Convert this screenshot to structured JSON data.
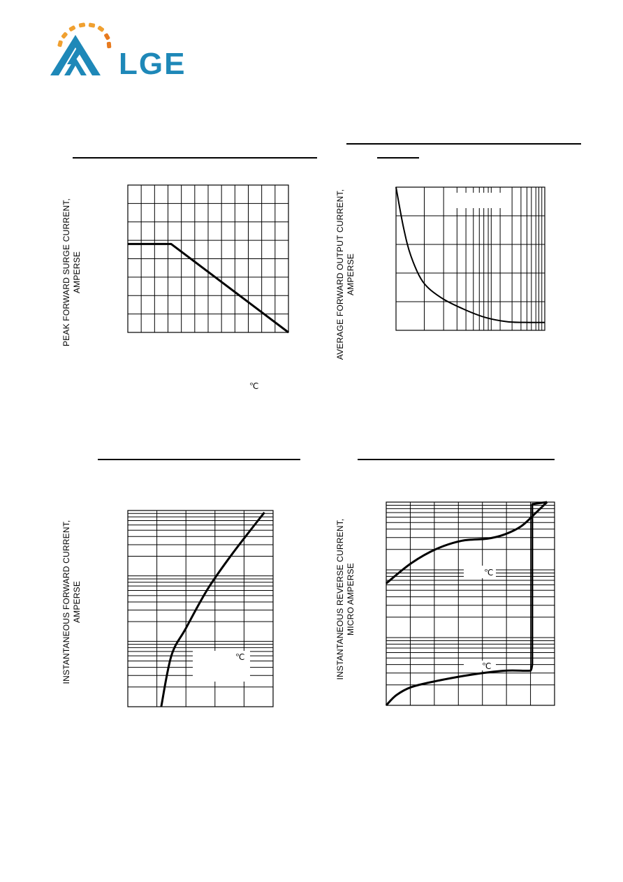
{
  "brand": {
    "logo_text": "LGE",
    "colors": {
      "blue": "#1e88b8",
      "orange": "#f0a030",
      "orange_dark": "#e87a1e"
    }
  },
  "charts": {
    "tl": {
      "ylabel_line1": "PEAK FORWARD SURGE CURRENT,",
      "ylabel_line2": "AMPERSE",
      "unit_mark": "℃"
    },
    "tr": {
      "ylabel_line1": "AVERAGE FORWARD OUTPUT CURRENT,",
      "ylabel_line2": "AMPERSE"
    },
    "bl": {
      "ylabel_line1": "INSTANTANEOUS FORWARD CURRENT,",
      "ylabel_line2": "AMPERSE",
      "unit_mark": "℃"
    },
    "br": {
      "ylabel_line1": "INSTANTANEOUS REVERSE CURRENT,",
      "ylabel_line2": "MICRO AMPERSE",
      "unit_mark_upper": "℃",
      "unit_mark_lower": "℃"
    }
  },
  "chart_data": [
    {
      "type": "line",
      "series": [
        {
          "x": [
            0,
            0.27,
            1.0
          ],
          "y": [
            0.6,
            0.6,
            0.0
          ]
        }
      ],
      "xlim": [
        0,
        1
      ],
      "ylim": [
        0,
        1
      ],
      "grid": true
    },
    {
      "type": "line",
      "xscale": "log",
      "series": [
        {
          "x": [
            0.0,
            0.05,
            0.1,
            0.18,
            0.3,
            0.45,
            0.6,
            0.75,
            0.9,
            1.0
          ],
          "y": [
            1.0,
            0.72,
            0.52,
            0.34,
            0.23,
            0.15,
            0.09,
            0.06,
            0.055,
            0.055
          ]
        }
      ],
      "xlim": [
        0,
        1
      ],
      "ylim": [
        0,
        1
      ],
      "grid": true
    },
    {
      "type": "line",
      "yscale": "log",
      "series": [
        {
          "x": [
            0.23,
            0.3,
            0.4,
            0.55,
            0.72,
            0.94
          ],
          "y": [
            0.0,
            0.26,
            0.4,
            0.6,
            0.78,
            0.99
          ]
        }
      ],
      "xlim": [
        0,
        1
      ],
      "ylim": [
        0,
        1
      ],
      "grid": true
    },
    {
      "type": "line",
      "yscale": "log",
      "series": [
        {
          "x": [
            0.0,
            0.15,
            0.3,
            0.45,
            0.6,
            0.7,
            0.8,
            0.88,
            0.955
          ],
          "y": [
            0.6,
            0.7,
            0.77,
            0.81,
            0.82,
            0.84,
            0.88,
            0.94,
            1.0
          ]
        },
        {
          "x": [
            0.0,
            0.06,
            0.15,
            0.3,
            0.5,
            0.7,
            0.84,
            0.86,
            0.867,
            0.867,
            0.955
          ],
          "y": [
            0.0,
            0.05,
            0.09,
            0.12,
            0.15,
            0.17,
            0.17,
            0.175,
            0.2,
            0.99,
            1.0
          ]
        }
      ],
      "xlim": [
        0,
        1
      ],
      "ylim": [
        0,
        1
      ],
      "grid": true
    }
  ]
}
